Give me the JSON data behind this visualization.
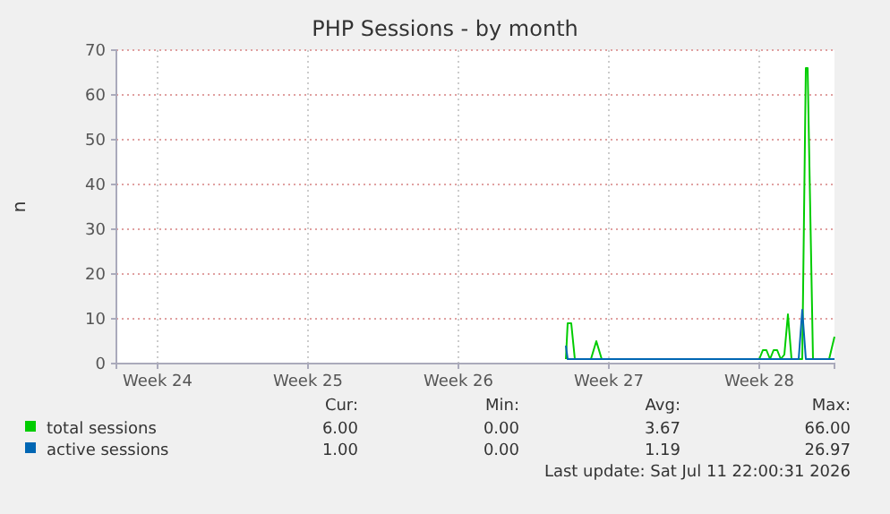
{
  "chart_data": {
    "type": "line",
    "title": "PHP Sessions - by month",
    "ylabel": "n",
    "xlim": [
      "2026-06-08T12:00",
      "2026-07-11T22:00"
    ],
    "xticks": [
      {
        "value": "2026-06-10T10:00",
        "label": "Week 24"
      },
      {
        "value": "2026-06-17T10:00",
        "label": "Week 25"
      },
      {
        "value": "2026-06-24T10:00",
        "label": "Week 26"
      },
      {
        "value": "2026-07-01T10:00",
        "label": "Week 27"
      },
      {
        "value": "2026-07-08T10:00",
        "label": "Week 28"
      }
    ],
    "ylim": [
      0,
      70
    ],
    "yticks": [
      0,
      10,
      20,
      30,
      40,
      50,
      60,
      70
    ],
    "grid": true,
    "legend": "bottom",
    "marker": "none",
    "line_style": "solid",
    "series": [
      {
        "name": "total sessions",
        "color": "#00cc00",
        "x": [
          "2026-06-29T10:00",
          "2026-06-29T12:00",
          "2026-06-29T16:00",
          "2026-06-29T20:00",
          "2026-06-30T14:00",
          "2026-06-30T20:00",
          "2026-07-01T02:00",
          "2026-07-08T10:00",
          "2026-07-08T14:00",
          "2026-07-08T18:00",
          "2026-07-08T22:00",
          "2026-07-09T02:00",
          "2026-07-09T06:00",
          "2026-07-09T10:00",
          "2026-07-09T14:00",
          "2026-07-09T18:00",
          "2026-07-09T22:00",
          "2026-07-10T02:00",
          "2026-07-10T10:00",
          "2026-07-10T14:00",
          "2026-07-10T16:00",
          "2026-07-10T22:00",
          "2026-07-11T02:00",
          "2026-07-11T10:00",
          "2026-07-11T16:00",
          "2026-07-11T22:00"
        ],
        "values": [
          1,
          9,
          9,
          1,
          1,
          5,
          1,
          1,
          3,
          3,
          1,
          3,
          3,
          1,
          2,
          11,
          1,
          1,
          1,
          66,
          66,
          1,
          1,
          1,
          1,
          6
        ]
      },
      {
        "name": "active sessions",
        "color": "#0066b3",
        "x": [
          "2026-06-29T10:00",
          "2026-06-29T12:00",
          "2026-07-10T06:00",
          "2026-07-10T10:00",
          "2026-07-10T14:00",
          "2026-07-11T22:00"
        ],
        "values": [
          4,
          1,
          1,
          12,
          1,
          1
        ]
      }
    ],
    "annotations": [
      "Cur:",
      "Min:",
      "Avg:",
      "Max:",
      "6.00",
      "0.00",
      "3.67",
      "66.00",
      "1.00",
      "0.00",
      "1.19",
      "26.97",
      "Last update: Sat Jul 11 22:00:31 2026"
    ]
  }
}
